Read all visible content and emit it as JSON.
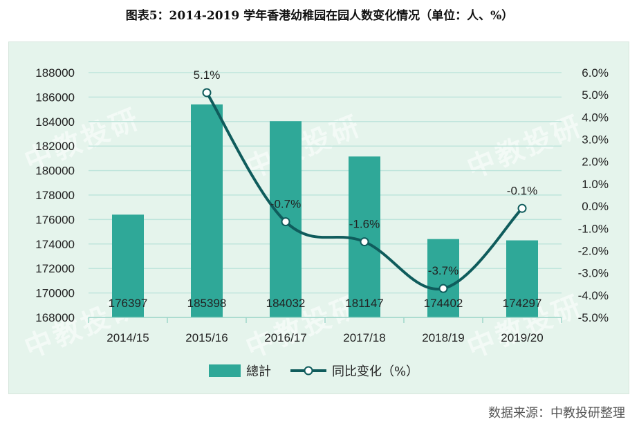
{
  "title": "图表5：2014-2019 学年香港幼稚园在园人数变化情况（单位：人、%）",
  "source": "数据来源：中教投研整理",
  "watermark": "中教投研",
  "colors": {
    "bar": "#2fa898",
    "line": "#0f5c5c",
    "grid": "#bfe5dc",
    "panel": "#e5f4ec"
  },
  "chart_data": {
    "type": "bar",
    "categories": [
      "2014/15",
      "2015/16",
      "2016/17",
      "2017/18",
      "2018/19",
      "2019/20"
    ],
    "series": [
      {
        "name": "總計",
        "type": "bar",
        "axis": "left",
        "values": [
          176397,
          185398,
          184032,
          181147,
          174402,
          174297
        ]
      },
      {
        "name": "同比变化（%）",
        "type": "line",
        "axis": "right",
        "values": [
          null,
          5.1,
          -0.7,
          -1.6,
          -3.7,
          -0.1
        ]
      }
    ],
    "bar_labels": [
      "176397",
      "185398",
      "184032",
      "181147",
      "174402",
      "174297"
    ],
    "line_labels": [
      "",
      "5.1%",
      "-0.7%",
      "-1.6%",
      "-3.7%",
      "-0.1%"
    ],
    "y_left": {
      "min": 168000,
      "max": 188000,
      "step": 2000,
      "ticks": [
        "168000",
        "170000",
        "172000",
        "174000",
        "176000",
        "178000",
        "180000",
        "182000",
        "184000",
        "186000",
        "188000"
      ]
    },
    "y_right": {
      "min": -5.0,
      "max": 6.0,
      "step": 1.0,
      "ticks": [
        "-5.0%",
        "-4.0%",
        "-3.0%",
        "-2.0%",
        "-1.0%",
        "0.0%",
        "1.0%",
        "2.0%",
        "3.0%",
        "4.0%",
        "5.0%",
        "6.0%"
      ]
    },
    "legend": {
      "position": "bottom",
      "bar_label": "總計",
      "line_label": "同比变化（%）"
    },
    "grid": true
  }
}
